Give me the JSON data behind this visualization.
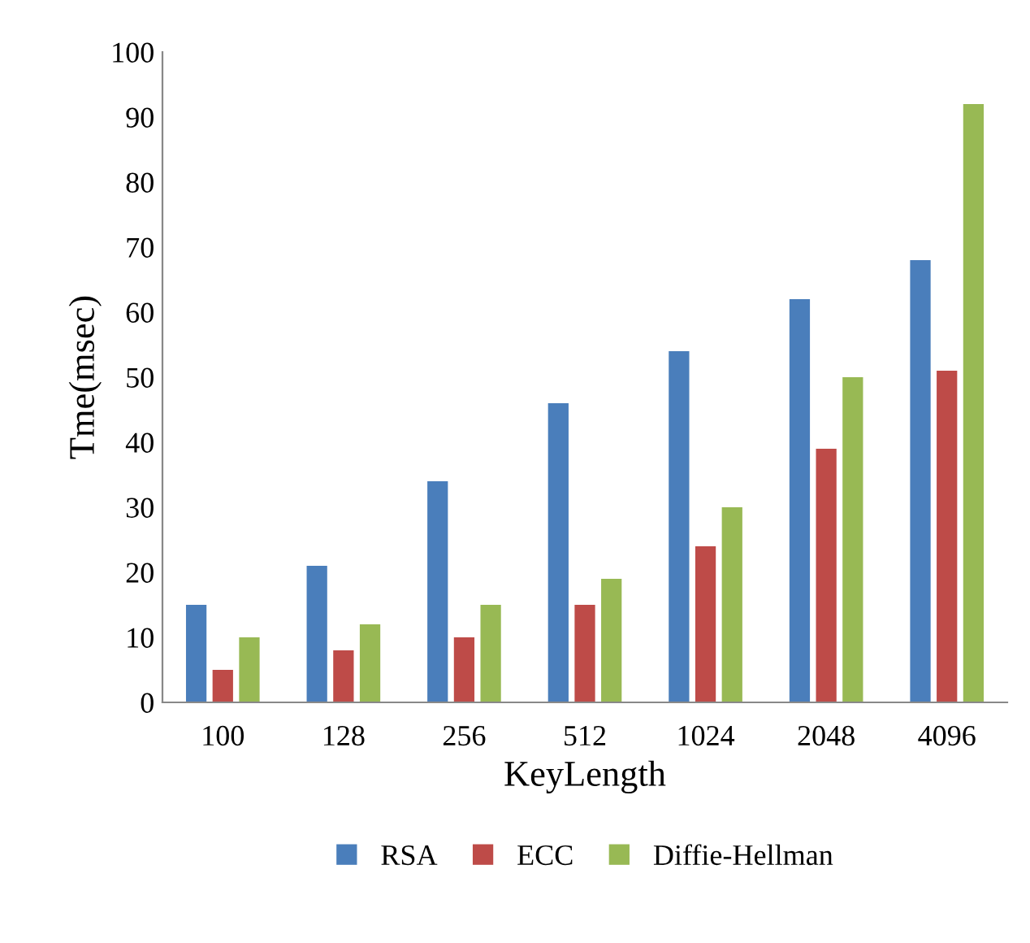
{
  "chart_data": {
    "type": "bar",
    "xlabel": "KeyLength",
    "ylabel": "Tme(msec)",
    "categories": [
      "100",
      "128",
      "256",
      "512",
      "1024",
      "2048",
      "4096"
    ],
    "series": [
      {
        "name": "RSA",
        "color": "#4a7ebb",
        "values": [
          15,
          21,
          34,
          46,
          54,
          62,
          68
        ]
      },
      {
        "name": "ECC",
        "color": "#be4b48",
        "values": [
          5,
          8,
          10,
          15,
          24,
          39,
          51
        ]
      },
      {
        "name": "Diffie-Hellman",
        "color": "#98b954",
        "values": [
          10,
          12,
          15,
          19,
          30,
          50,
          92
        ]
      }
    ],
    "ylim": [
      0,
      100
    ],
    "yticks": [
      0,
      10,
      20,
      30,
      40,
      50,
      60,
      70,
      80,
      90,
      100
    ],
    "grid": false,
    "legend": "bottom"
  }
}
